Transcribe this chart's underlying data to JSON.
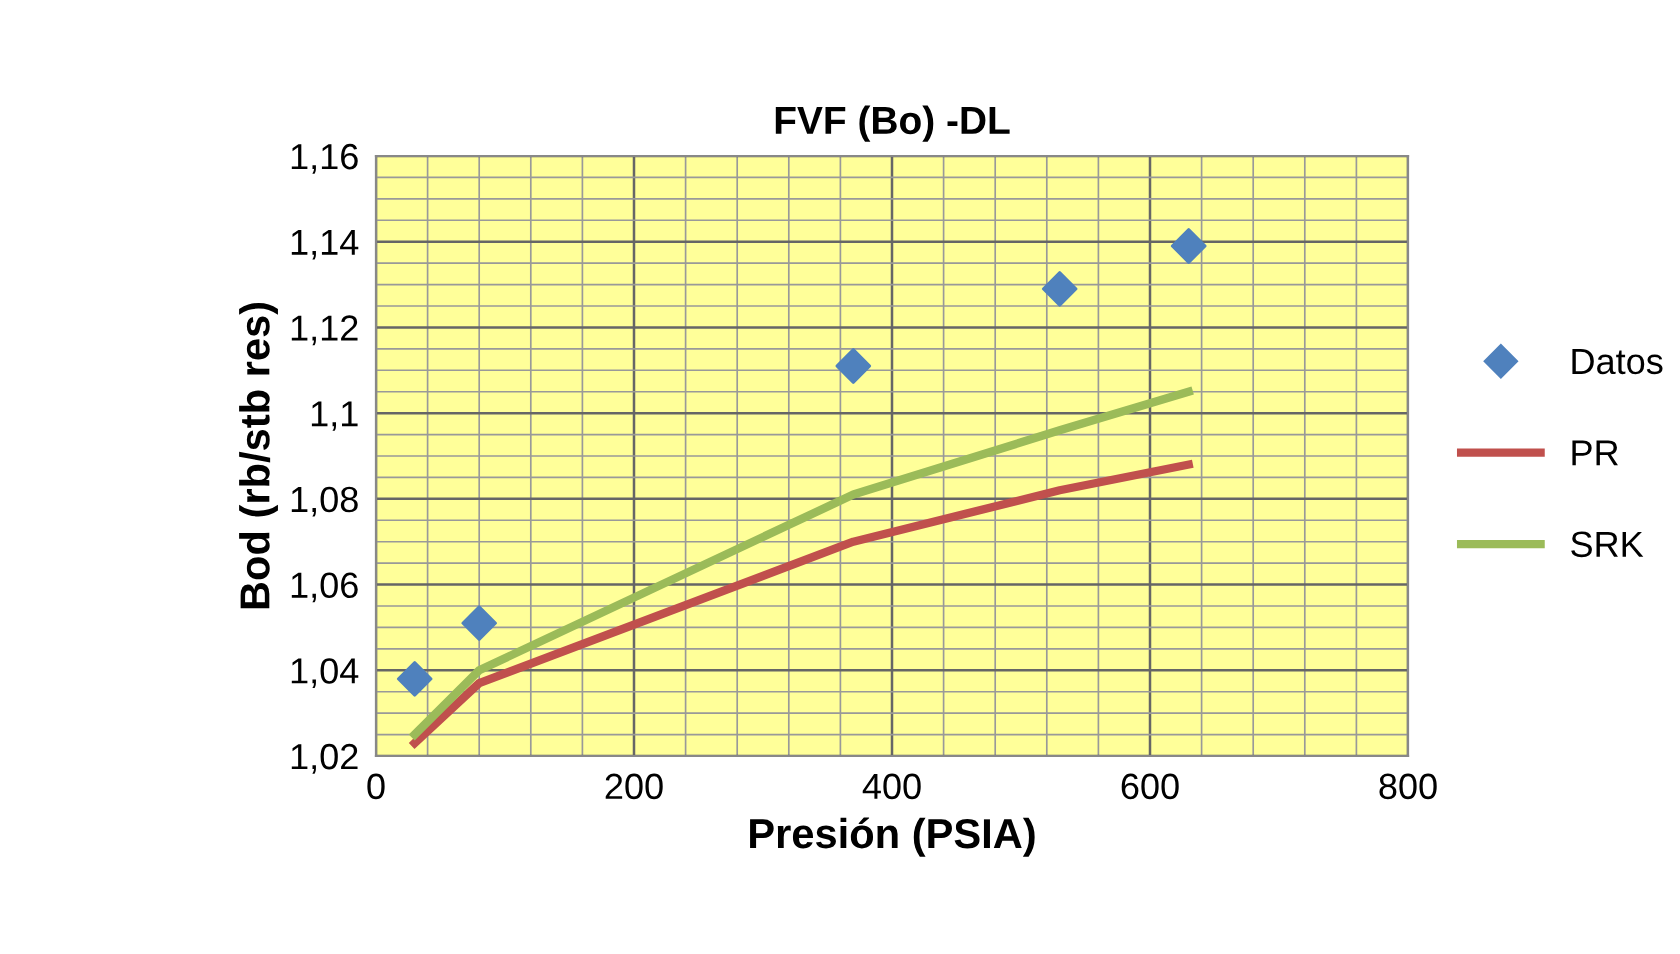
{
  "chart_data": {
    "type": "line",
    "title": "FVF (Bo) -DL",
    "xlabel": "Presión (PSIA)",
    "ylabel": "Bod (rb/stb res)",
    "xlim": [
      0,
      800
    ],
    "xticks": [
      0,
      200,
      400,
      600,
      800
    ],
    "ylim": [
      1.02,
      1.16
    ],
    "yticks": [
      {
        "value": 1.02,
        "label": "1,02"
      },
      {
        "value": 1.04,
        "label": "1,04"
      },
      {
        "value": 1.06,
        "label": "1,06"
      },
      {
        "value": 1.08,
        "label": "1,08"
      },
      {
        "value": 1.1,
        "label": "1,1"
      },
      {
        "value": 1.12,
        "label": "1,12"
      },
      {
        "value": 1.14,
        "label": "1,14"
      },
      {
        "value": 1.16,
        "label": "1,16"
      }
    ],
    "grid": true,
    "legend": "right",
    "series": [
      {
        "name": "Datos",
        "type": "scatter",
        "marker": "diamond",
        "color": "#4f81bd",
        "x": [
          30,
          80,
          370,
          530,
          630
        ],
        "values": [
          1.038,
          1.051,
          1.111,
          1.129,
          1.139
        ]
      },
      {
        "name": "PR",
        "color": "#c0504d",
        "x": [
          30,
          80,
          370,
          530,
          630
        ],
        "values": [
          1.023,
          1.037,
          1.07,
          1.082,
          1.088
        ]
      },
      {
        "name": "SRK",
        "color": "#9bbb59",
        "x": [
          30,
          80,
          370,
          530,
          630
        ],
        "values": [
          1.025,
          1.04,
          1.081,
          1.096,
          1.105
        ]
      }
    ]
  }
}
